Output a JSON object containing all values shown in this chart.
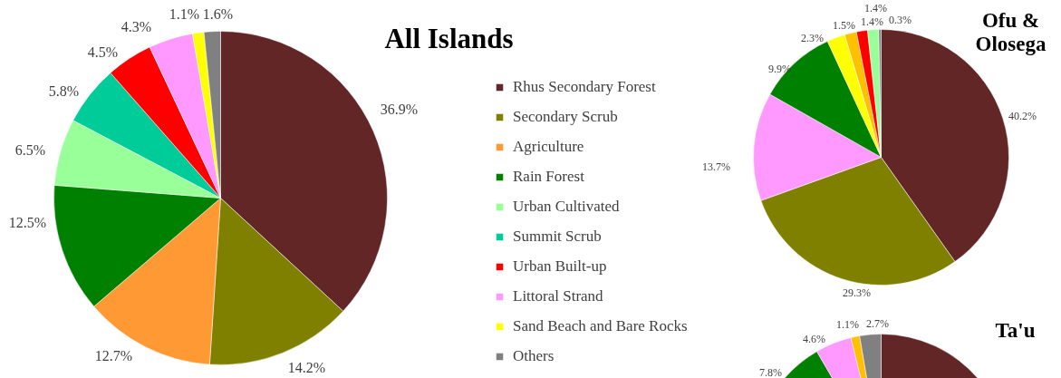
{
  "chart_data": [
    {
      "type": "pie",
      "title": "All Islands",
      "legend": "right",
      "categories": [
        "Rhus Secondary Forest",
        "Secondary Scrub",
        "Agriculture",
        "Rain Forest",
        "Urban Cultivated",
        "Summit Scrub",
        "Urban Built-up",
        "Littoral Strand",
        "Sand Beach and Bare Rocks",
        "Others"
      ],
      "values": [
        36.9,
        14.2,
        12.7,
        12.5,
        6.5,
        5.8,
        4.5,
        4.3,
        1.1,
        1.6
      ],
      "colors": [
        "#622626",
        "#808000",
        "#ff9933",
        "#008000",
        "#99ff99",
        "#00cc99",
        "#ff0000",
        "#ff99ff",
        "#ffff00",
        "#808080"
      ],
      "value_labels": [
        "36.9%",
        "14.2%",
        "12.7%",
        "12.5%",
        "6.5%",
        "5.8%",
        "4.5%",
        "4.3%",
        "1.1%",
        "1.6%"
      ]
    },
    {
      "type": "pie",
      "title": "Ofu & Olosega",
      "values": [
        40.2,
        29.3,
        13.7,
        9.9,
        2.3,
        1.5,
        1.4,
        1.4,
        0.3
      ],
      "colors": [
        "#622626",
        "#808000",
        "#ff99ff",
        "#008000",
        "#ffff00",
        "#ffc000",
        "#ff0000",
        "#99ff99",
        "#808080"
      ],
      "value_labels": [
        "40.2%",
        "29.3%",
        "13.7%",
        "9.9%",
        "2.3%",
        "1.5%",
        "1.4%",
        "1.4%",
        "0.3%"
      ]
    },
    {
      "type": "pie",
      "title": "Ta'u",
      "values": [
        83.8,
        7.8,
        4.6,
        1.1,
        2.7
      ],
      "colors": [
        "#622626",
        "#008000",
        "#ff99ff",
        "#ffc000",
        "#808080"
      ],
      "value_labels": [
        null,
        "7.8%",
        "4.6%",
        "1.1%",
        "2.7%"
      ]
    }
  ]
}
